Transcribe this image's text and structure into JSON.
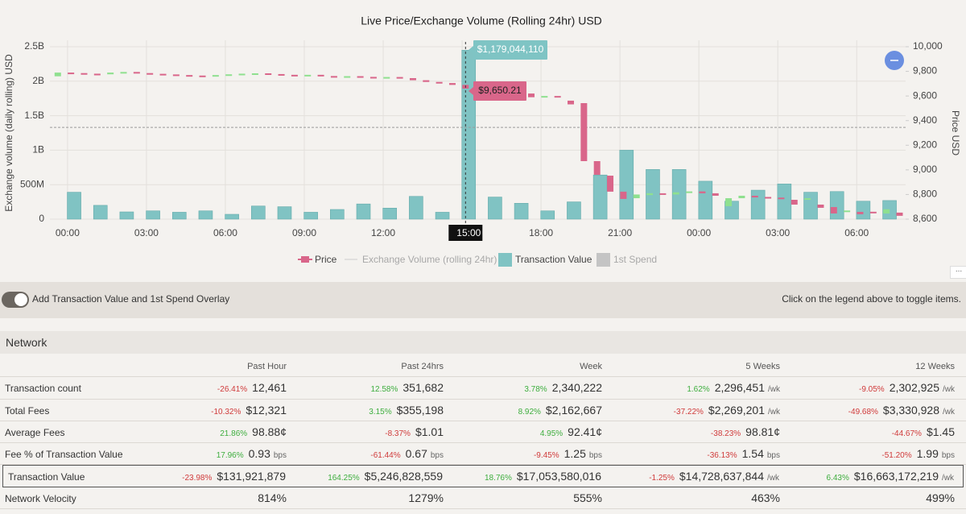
{
  "chart_data": {
    "type": "candlestick-bar",
    "title": "Live Price/Exchange Volume (Rolling 24hr) USD",
    "y_label": "Exchange volume (daily rolling) USD",
    "y2_label": "Price USD",
    "xlim": [
      -0.67,
      31.86
    ],
    "xticks": [
      {
        "value": 0,
        "label": "00:00"
      },
      {
        "value": 3,
        "label": "03:00"
      },
      {
        "value": 6,
        "label": "06:00"
      },
      {
        "value": 9,
        "label": "09:00"
      },
      {
        "value": 12,
        "label": "12:00"
      },
      {
        "value": 15,
        "label": "15:00"
      },
      {
        "value": 18,
        "label": "18:00"
      },
      {
        "value": 21,
        "label": "21:00"
      },
      {
        "value": 24,
        "label": "00:00"
      },
      {
        "value": 27,
        "label": "03:00"
      },
      {
        "value": 30,
        "label": "06:00"
      }
    ],
    "ylim": [
      0,
      2500000000
    ],
    "yticks": [
      0,
      {
        "value": 500000000,
        "label": "500M"
      },
      {
        "value": 1000000000,
        "label": "1B"
      },
      {
        "value": 1500000000,
        "label": "1.5B"
      },
      {
        "value": 2000000000,
        "label": "2B"
      },
      {
        "value": 2500000000,
        "label": "2.5B"
      }
    ],
    "y2lim": [
      8600,
      10000
    ],
    "y2ticks": [
      {
        "value": 8600,
        "label": "8,600"
      },
      {
        "value": 8800,
        "label": "8,800"
      },
      {
        "value": 9000,
        "label": "9,000"
      },
      {
        "value": 9200,
        "label": "9,200"
      },
      {
        "value": 9400,
        "label": "9,400"
      },
      {
        "value": 9600,
        "label": "9,600"
      },
      {
        "value": 9800,
        "label": "9,800"
      },
      {
        "value": 10000,
        "label": "10,000"
      }
    ],
    "grid": true,
    "highlight_tick": 5,
    "crosshair_x": 15.13,
    "series": [
      {
        "name": "Price",
        "kind": "candles",
        "axis": "y2",
        "color": "#d9668a",
        "up_color": "#8fe08f",
        "x": [
          -0.37,
          0.13,
          0.63,
          1.13,
          1.63,
          2.13,
          2.63,
          3.13,
          3.63,
          4.13,
          4.63,
          5.13,
          5.63,
          6.13,
          6.63,
          7.13,
          7.63,
          8.13,
          8.63,
          9.13,
          9.63,
          10.13,
          10.63,
          11.13,
          11.63,
          12.13,
          12.63,
          13.13,
          13.63,
          14.13,
          14.63,
          15.13,
          15.63,
          16.13,
          16.63,
          17.13,
          17.63,
          18.13,
          18.63,
          19.13,
          19.63,
          20.13,
          20.63,
          21.13,
          21.63,
          22.13,
          22.63,
          23.13,
          23.63,
          24.13,
          24.63,
          25.13,
          25.63,
          26.13,
          26.63,
          27.13,
          27.63,
          28.13,
          28.63,
          29.13,
          29.63,
          30.13,
          30.63,
          31.13,
          31.63
        ],
        "open": [
          9760,
          9790,
          9786,
          9781,
          9776,
          9790,
          9795,
          9786,
          9780,
          9775,
          9770,
          9766,
          9762,
          9770,
          9776,
          9781,
          9784,
          9778,
          9772,
          9768,
          9772,
          9762,
          9758,
          9761,
          9755,
          9750,
          9754,
          9745,
          9728,
          9714,
          9705,
          9690,
          9660,
          9650,
          9641,
          9636,
          9620,
          9590,
          9600,
          9562,
          9542,
          9071,
          8953,
          8823,
          8770,
          8795,
          8810,
          8800,
          8815,
          8825,
          8810,
          8705,
          8770,
          8790,
          8780,
          8775,
          8757,
          8760,
          8718,
          8698,
          8660,
          8659,
          8660,
          8646,
          8653
        ],
        "close": [
          9790,
          9786,
          9781,
          9776,
          9790,
          9795,
          9786,
          9780,
          9775,
          9770,
          9766,
          9762,
          9770,
          9776,
          9781,
          9784,
          9778,
          9772,
          9768,
          9772,
          9762,
          9758,
          9761,
          9755,
          9750,
          9754,
          9745,
          9728,
          9714,
          9705,
          9690,
          9660,
          9650,
          9641,
          9636,
          9626,
          9590,
          9600,
          9592,
          9532,
          9071,
          8960,
          8823,
          8764,
          8800,
          8810,
          8800,
          8818,
          8825,
          8810,
          8790,
          8770,
          8790,
          8776,
          8770,
          8770,
          8718,
          8770,
          8692,
          8646,
          8670,
          8640,
          8650,
          8680,
          8627
        ]
      },
      {
        "name": "Exchange Volume (rolling 24hr)",
        "kind": "level",
        "color": "#9a9a9a",
        "dim": true,
        "values": [
          1330000000
        ]
      },
      {
        "name": "Transaction Value",
        "kind": "bars",
        "color": "#80c3c3",
        "x": [
          0.25,
          1.25,
          2.25,
          3.25,
          4.25,
          5.25,
          6.25,
          7.25,
          8.25,
          9.25,
          10.25,
          11.25,
          12.25,
          13.25,
          14.25,
          15.25,
          16.25,
          17.25,
          18.25,
          19.25,
          20.25,
          21.25,
          22.25,
          23.25,
          24.25,
          25.25,
          26.25,
          27.25,
          28.25,
          29.25,
          30.25,
          31.25
        ],
        "values": [
          390000000,
          200000000,
          105000000,
          120000000,
          100000000,
          120000000,
          70000000,
          190000000,
          180000000,
          100000000,
          140000000,
          220000000,
          160000000,
          330000000,
          100000000,
          2450000000,
          320000000,
          230000000,
          120000000,
          250000000,
          640000000,
          1000000000,
          720000000,
          720000000,
          550000000,
          260000000,
          420000000,
          510000000,
          390000000,
          400000000,
          260000000,
          270000000
        ]
      },
      {
        "name": "1st Spend",
        "kind": "none",
        "color": "#c4c4c4",
        "dim": true
      }
    ],
    "tooltips": [
      {
        "text": "$1,179,044,110",
        "color": "#7fc4c4"
      },
      {
        "text": "$9,650.21",
        "color": "#d9668a"
      }
    ]
  },
  "controls": {
    "toggle_label": "Add Transaction Value and 1st Spend Overlay",
    "hint": "Click on the legend above to toggle items."
  },
  "network": {
    "title": "Network",
    "columns": [
      "Past Hour",
      "Past 24hrs",
      "Week",
      "5 Weeks",
      "12 Weeks"
    ],
    "rows": [
      {
        "label": "Transaction count",
        "cells": [
          {
            "change": "-26.41%",
            "value": "12,461"
          },
          {
            "change": "12.58%",
            "value": "351,682"
          },
          {
            "change": "3.78%",
            "value": "2,340,222"
          },
          {
            "change": "1.62%",
            "value": "2,296,451",
            "unit": "/wk"
          },
          {
            "change": "-9.05%",
            "value": "2,302,925",
            "unit": "/wk"
          }
        ]
      },
      {
        "label": "Total Fees",
        "cells": [
          {
            "change": "-10.32%",
            "value": "$12,321"
          },
          {
            "change": "3.15%",
            "value": "$355,198"
          },
          {
            "change": "8.92%",
            "value": "$2,162,667"
          },
          {
            "change": "-37.22%",
            "value": "$2,269,201",
            "unit": "/wk"
          },
          {
            "change": "-49.68%",
            "value": "$3,330,928",
            "unit": "/wk"
          }
        ]
      },
      {
        "label": "Average Fees",
        "cells": [
          {
            "change": "21.86%",
            "value": "98.88¢"
          },
          {
            "change": "-8.37%",
            "value": "$1.01"
          },
          {
            "change": "4.95%",
            "value": "92.41¢"
          },
          {
            "change": "-38.23%",
            "value": "98.81¢"
          },
          {
            "change": "-44.67%",
            "value": "$1.45"
          }
        ]
      },
      {
        "label": "Fee % of Transaction Value",
        "cells": [
          {
            "change": "17.96%",
            "value": "0.93",
            "unit": "bps"
          },
          {
            "change": "-61.44%",
            "value": "0.67",
            "unit": "bps"
          },
          {
            "change": "-9.45%",
            "value": "1.25",
            "unit": "bps"
          },
          {
            "change": "-36.13%",
            "value": "1.54",
            "unit": "bps"
          },
          {
            "change": "-51.20%",
            "value": "1.99",
            "unit": "bps"
          }
        ]
      },
      {
        "label": "Transaction Value",
        "highlight": true,
        "cells": [
          {
            "change": "-23.98%",
            "value": "$131,921,879"
          },
          {
            "change": "164.25%",
            "value": "$5,246,828,559"
          },
          {
            "change": "18.76%",
            "value": "$17,053,580,016"
          },
          {
            "change": "-1.25%",
            "value": "$14,728,637,844",
            "unit": "/wk"
          },
          {
            "change": "6.43%",
            "value": "$16,663,172,219",
            "unit": "/wk"
          }
        ]
      },
      {
        "label": "Network Velocity",
        "cells": [
          {
            "value": "814%"
          },
          {
            "value": "1279%"
          },
          {
            "value": "555%"
          },
          {
            "value": "463%"
          },
          {
            "value": "499%"
          }
        ]
      }
    ]
  }
}
